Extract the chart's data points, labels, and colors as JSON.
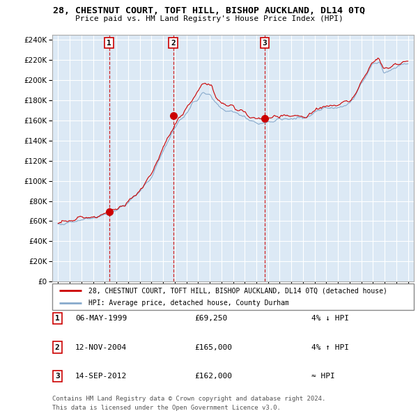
{
  "title": "28, CHESTNUT COURT, TOFT HILL, BISHOP AUCKLAND, DL14 0TQ",
  "subtitle": "Price paid vs. HM Land Registry's House Price Index (HPI)",
  "ylabel_ticks": [
    0,
    20000,
    40000,
    60000,
    80000,
    100000,
    120000,
    140000,
    160000,
    180000,
    200000,
    220000,
    240000
  ],
  "red_color": "#cc0000",
  "blue_color": "#88aacc",
  "background_color": "#dce9f5",
  "grid_color": "#ffffff",
  "vline_color": "#cc0000",
  "legend_label_red": "28, CHESTNUT COURT, TOFT HILL, BISHOP AUCKLAND, DL14 0TQ (detached house)",
  "legend_label_blue": "HPI: Average price, detached house, County Durham",
  "table_rows": [
    {
      "num": "1",
      "date": "06-MAY-1999",
      "price": "£69,250",
      "hpi_rel": "4% ↓ HPI"
    },
    {
      "num": "2",
      "date": "12-NOV-2004",
      "price": "£165,000",
      "hpi_rel": "4% ↑ HPI"
    },
    {
      "num": "3",
      "date": "14-SEP-2012",
      "price": "£162,000",
      "hpi_rel": "≈ HPI"
    }
  ],
  "footer": [
    "Contains HM Land Registry data © Crown copyright and database right 2024.",
    "This data is licensed under the Open Government Licence v3.0."
  ],
  "sale_years": [
    1999.37,
    2004.87,
    2012.71
  ],
  "sale_prices": [
    69250,
    165000,
    162000
  ],
  "sale_labels": [
    "1",
    "2",
    "3"
  ]
}
